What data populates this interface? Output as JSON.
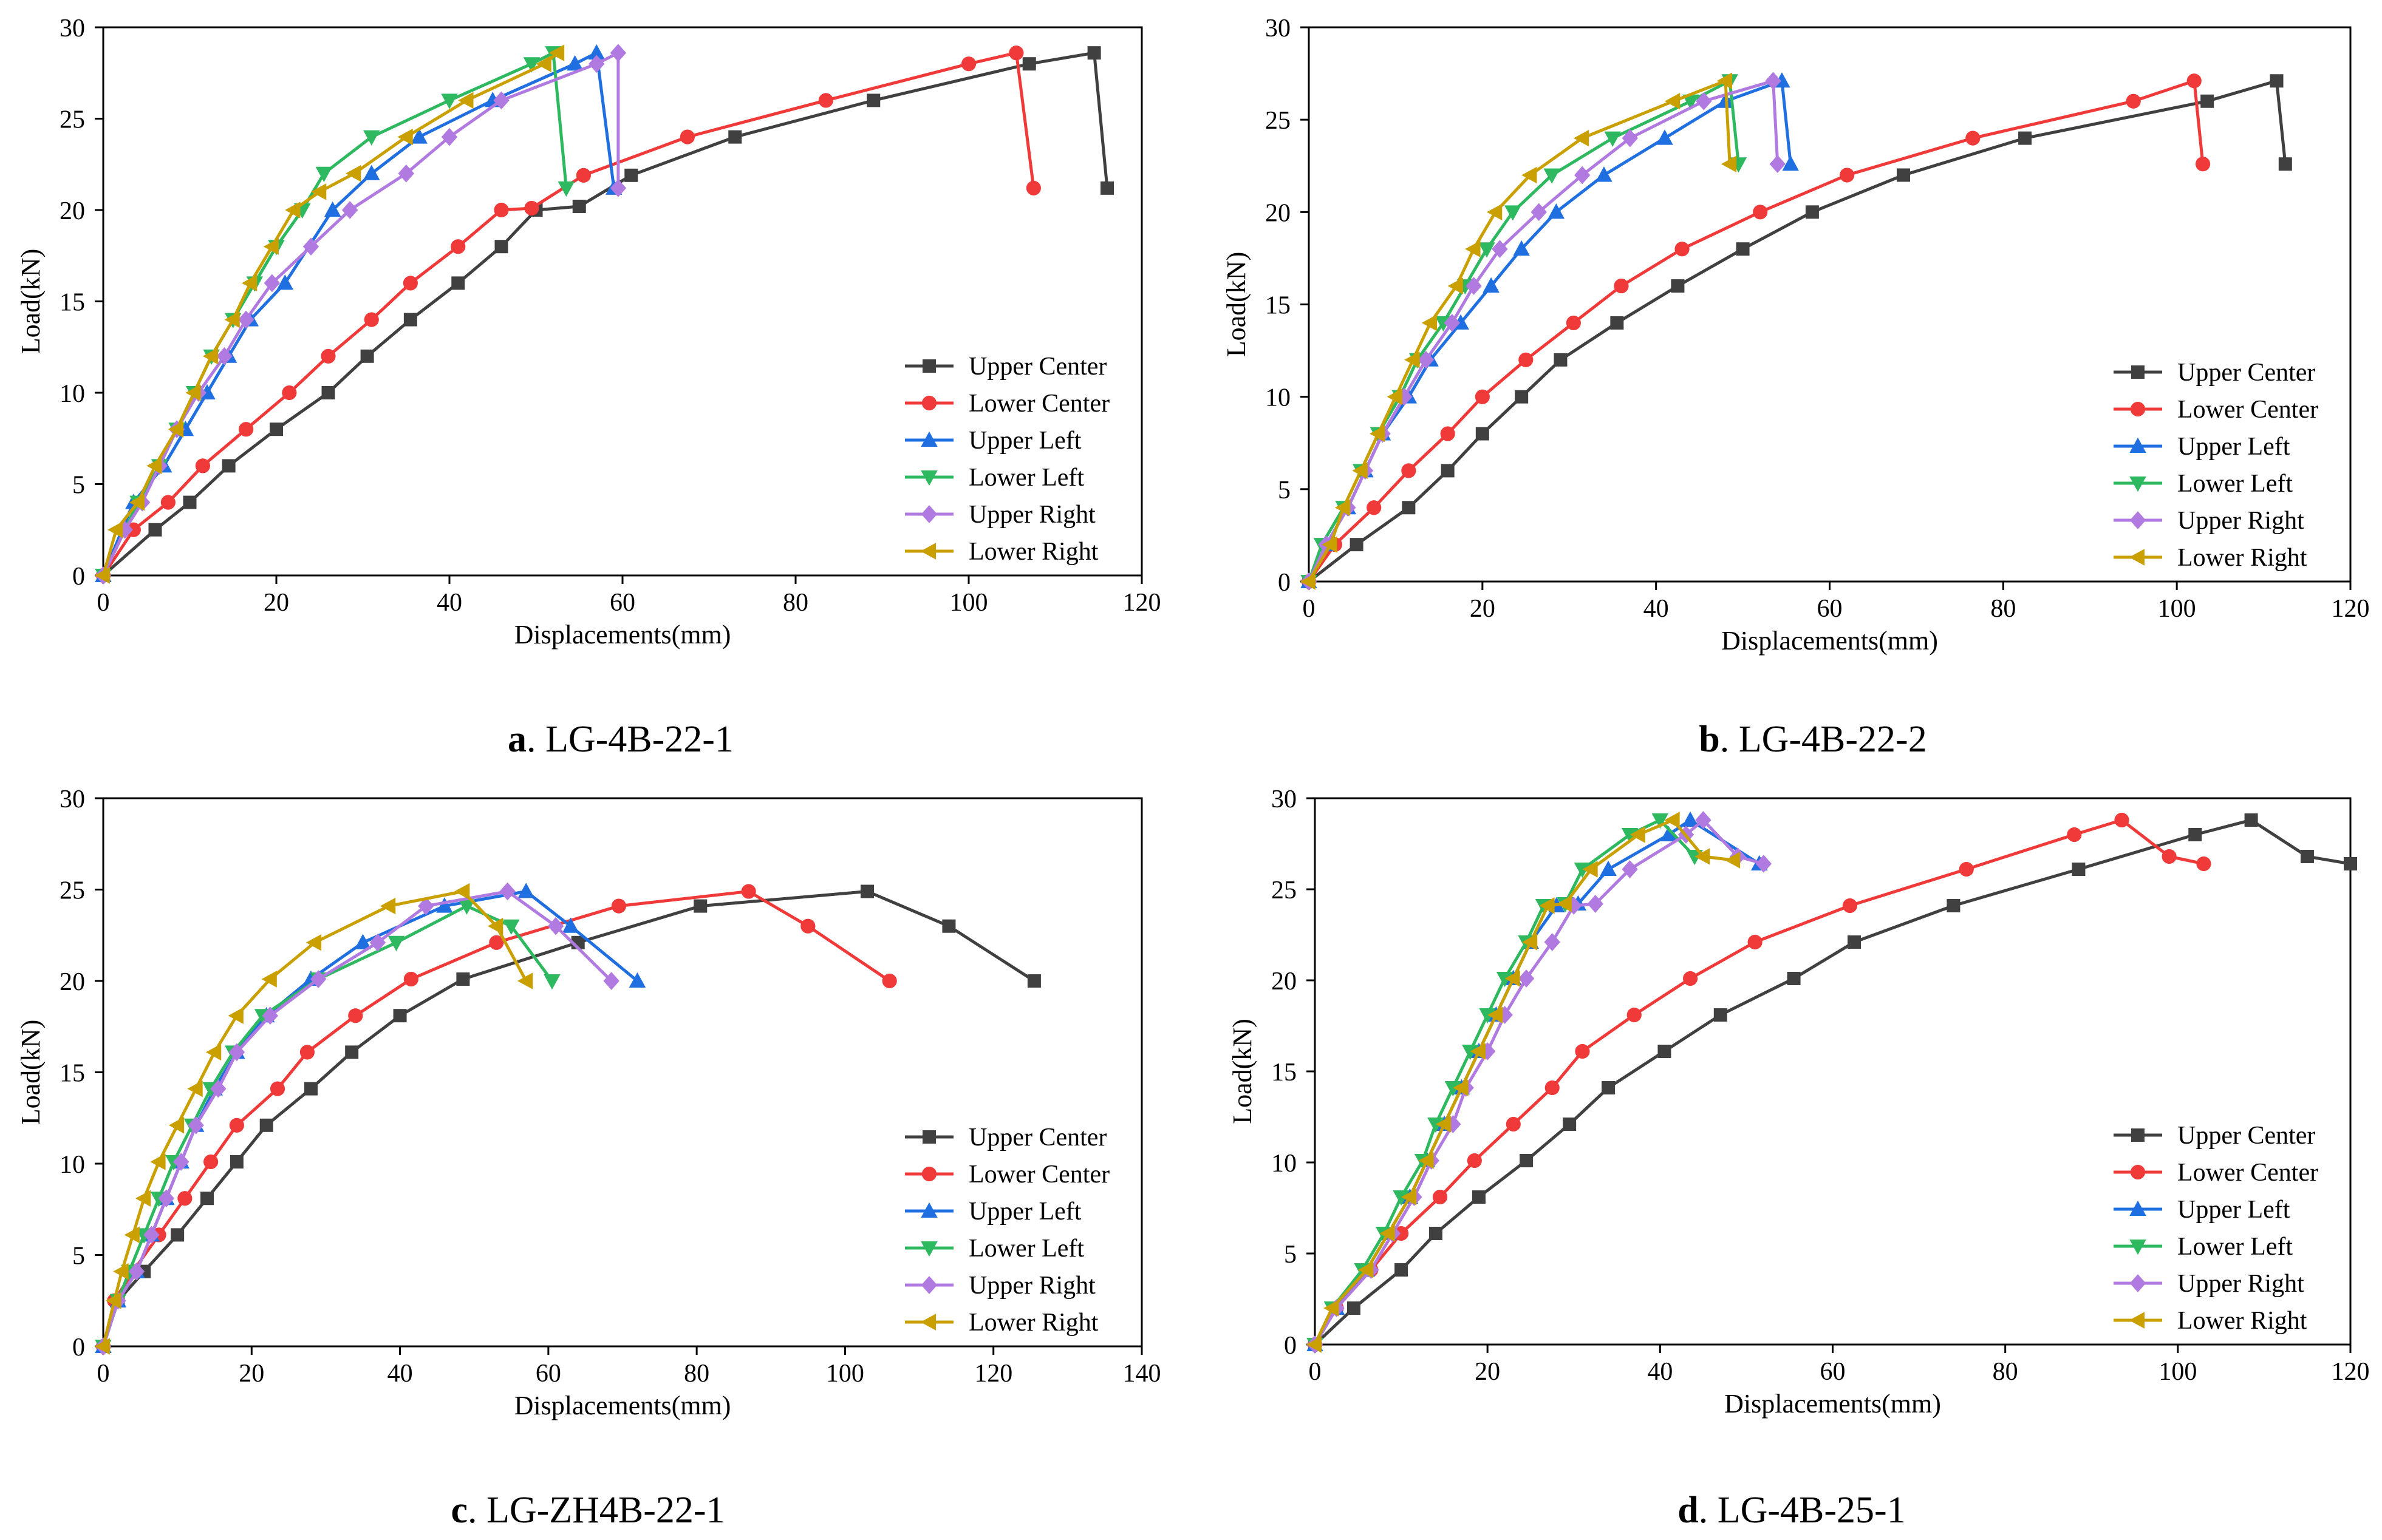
{
  "colors": {
    "Upper Center": "#404040",
    "Lower Center": "#f03a3a",
    "Upper Left": "#1f6fe0",
    "Lower Left": "#2eb860",
    "Upper Right": "#b07ae0",
    "Lower Right": "#c9a000"
  },
  "markers": {
    "Upper Center": "square",
    "Lower Center": "circle",
    "Upper Left": "triangle-up",
    "Lower Left": "triangle-down",
    "Upper Right": "diamond",
    "Lower Right": "triangle-left"
  },
  "chart_data": [
    {
      "type": "line",
      "panel": "a",
      "caption_letter": "a",
      "caption_text": ". LG-4B-22-1",
      "xlabel": "Displacements(mm)",
      "ylabel": "Load(kN)",
      "xlim": [
        0,
        120
      ],
      "ylim": [
        0,
        30
      ],
      "xticks": [
        0,
        20,
        40,
        60,
        80,
        100,
        120
      ],
      "yticks": [
        0,
        5,
        10,
        15,
        20,
        25,
        30
      ],
      "legend_position": "lower-right",
      "series": [
        {
          "name": "Upper Center",
          "x": [
            0,
            6,
            10,
            14.5,
            20,
            26,
            30.5,
            35.5,
            41,
            46,
            50,
            55,
            61,
            73,
            89,
            107,
            114.5,
            116
          ],
          "y": [
            0,
            2.5,
            4,
            6,
            8,
            10,
            12,
            14,
            16,
            18,
            20,
            20.2,
            21.9,
            24,
            26,
            28,
            28.6,
            21.2
          ]
        },
        {
          "name": "Lower Center",
          "x": [
            0,
            3.5,
            7.5,
            11.5,
            16.5,
            21.5,
            26,
            31,
            35.5,
            41,
            46,
            49.5,
            55.5,
            67.5,
            83.5,
            100,
            105.5,
            107.5
          ],
          "y": [
            0,
            2.5,
            4,
            6,
            8,
            10,
            12,
            14,
            16,
            18,
            20,
            20.1,
            21.9,
            24,
            26,
            28,
            28.6,
            21.2
          ]
        },
        {
          "name": "Upper Left",
          "x": [
            0,
            3.5,
            7,
            9.5,
            12,
            14.5,
            17,
            21,
            26.5,
            31,
            36.5,
            45,
            54.5,
            57,
            59
          ],
          "y": [
            0,
            4,
            6,
            8,
            10,
            12,
            14,
            16,
            20,
            22,
            24,
            26,
            28,
            28.6,
            21.2
          ]
        },
        {
          "name": "Lower Left",
          "x": [
            0,
            4,
            6.5,
            8.5,
            10.5,
            12.5,
            15,
            17.5,
            20,
            23,
            25.5,
            31,
            40,
            49.5,
            52,
            53.5
          ],
          "y": [
            0,
            4,
            6,
            8,
            10,
            12,
            14,
            16,
            18,
            20,
            22,
            24,
            26,
            28,
            28.6,
            21.2
          ]
        },
        {
          "name": "Upper Right",
          "x": [
            0,
            2.5,
            4.5,
            6.5,
            8.5,
            11,
            14,
            16.5,
            19.5,
            24,
            28.5,
            35,
            40,
            46,
            57,
            59.5,
            59.5
          ],
          "y": [
            0,
            2.5,
            4,
            6,
            8,
            10,
            12,
            14,
            16,
            18,
            20,
            22,
            24,
            26,
            28,
            28.6,
            21.2
          ]
        },
        {
          "name": "Lower Right",
          "x": [
            0,
            1.5,
            4,
            6,
            8.5,
            10.5,
            12.5,
            15,
            17,
            19.5,
            22,
            25,
            29,
            35,
            42,
            51,
            52.5
          ],
          "y": [
            0,
            2.5,
            4,
            6,
            8,
            10,
            12,
            14,
            16,
            18,
            20,
            21,
            22,
            24,
            26,
            28,
            28.6
          ]
        }
      ]
    },
    {
      "type": "line",
      "panel": "b",
      "caption_letter": "b",
      "caption_text": ". LG-4B-22-2",
      "xlabel": "Displacements(mm)",
      "ylabel": "Load(kN)",
      "xlim": [
        0,
        120
      ],
      "ylim": [
        0,
        30
      ],
      "xticks": [
        0,
        20,
        40,
        60,
        80,
        100,
        120
      ],
      "yticks": [
        0,
        5,
        10,
        15,
        20,
        25,
        30
      ],
      "legend_position": "lower-right",
      "series": [
        {
          "name": "Upper Center",
          "x": [
            0,
            5.5,
            11.5,
            16,
            20,
            24.5,
            29,
            35.5,
            42.5,
            50,
            58,
            68.5,
            82.5,
            103.5,
            111.5,
            112.5
          ],
          "y": [
            0,
            2,
            4,
            6,
            8,
            10,
            12,
            14,
            16,
            18,
            20,
            22,
            24,
            26,
            27.1,
            22.6
          ]
        },
        {
          "name": "Lower Center",
          "x": [
            0,
            3,
            7.5,
            11.5,
            16,
            20,
            25,
            30.5,
            36,
            43,
            52,
            62,
            76.5,
            95,
            102,
            103
          ],
          "y": [
            0,
            2,
            4,
            6,
            8,
            10,
            12,
            14,
            16,
            18,
            20,
            22,
            24,
            26,
            27.1,
            22.6
          ]
        },
        {
          "name": "Upper Left",
          "x": [
            0,
            2,
            4.5,
            6.5,
            8.5,
            11.5,
            14,
            17.5,
            21,
            24.5,
            28.5,
            34,
            41,
            48,
            54.5,
            55.5
          ],
          "y": [
            0,
            2,
            4,
            6,
            8,
            10,
            12,
            14,
            16,
            18,
            20,
            22,
            24,
            26,
            27.1,
            22.6
          ]
        },
        {
          "name": "Lower Left",
          "x": [
            0,
            1.5,
            4,
            6,
            8,
            10.5,
            12.5,
            15.5,
            18,
            20.5,
            23.5,
            28,
            35,
            44,
            48.5,
            49.5
          ],
          "y": [
            0,
            2,
            4,
            6,
            8,
            10,
            12,
            14,
            16,
            18,
            20,
            22,
            24,
            26,
            27.1,
            22.6
          ]
        },
        {
          "name": "Upper Right",
          "x": [
            0,
            2,
            4.5,
            6.5,
            8.5,
            11,
            13.5,
            16.5,
            19,
            22,
            26.5,
            31.5,
            37,
            45.5,
            53.5,
            54
          ],
          "y": [
            0,
            2,
            4,
            6,
            8,
            10,
            12,
            14,
            16,
            18,
            20,
            22,
            24,
            26,
            27.1,
            22.6
          ]
        },
        {
          "name": "Lower Right",
          "x": [
            0,
            2.5,
            4,
            6,
            8,
            10,
            12,
            14,
            17,
            19,
            21.5,
            25.5,
            31.5,
            42,
            48,
            48.5
          ],
          "y": [
            0,
            2,
            4,
            6,
            8,
            10,
            12,
            14,
            16,
            18,
            20,
            22,
            24,
            26,
            27.1,
            22.6
          ]
        }
      ]
    },
    {
      "type": "line",
      "panel": "c",
      "caption_letter": "c",
      "caption_text": ". LG-ZH4B-22-1",
      "xlabel": "Displacements(mm)",
      "ylabel": "Load(kN)",
      "xlim": [
        0,
        140
      ],
      "ylim": [
        0,
        30
      ],
      "xticks": [
        0,
        20,
        40,
        60,
        80,
        100,
        120,
        140
      ],
      "yticks": [
        0,
        5,
        10,
        15,
        20,
        25,
        30
      ],
      "legend_position": "lower-right",
      "series": [
        {
          "name": "Upper Center",
          "x": [
            0,
            2,
            5.5,
            10,
            14,
            18,
            22,
            28,
            33.5,
            40,
            48.5,
            64,
            80.5,
            103,
            114,
            125.5
          ],
          "y": [
            0,
            2.5,
            4.1,
            6.1,
            8.1,
            10.1,
            12.1,
            14.1,
            16.1,
            18.1,
            20.1,
            22.1,
            24.1,
            24.9,
            23,
            20
          ]
        },
        {
          "name": "Lower Center",
          "x": [
            0,
            1.5,
            4,
            7.5,
            11,
            14.5,
            18,
            23.5,
            27.5,
            34,
            41.5,
            53,
            69.5,
            87,
            95,
            106
          ],
          "y": [
            0,
            2.5,
            4.1,
            6.1,
            8.1,
            10.1,
            12.1,
            14.1,
            16.1,
            18.1,
            20.1,
            22.1,
            24.1,
            24.9,
            23,
            20
          ]
        },
        {
          "name": "Upper Left",
          "x": [
            0,
            2,
            4.5,
            6.5,
            8.5,
            10.5,
            12.5,
            15,
            18,
            22,
            28,
            35,
            46,
            57,
            63,
            72
          ],
          "y": [
            0,
            2.5,
            4.1,
            6.1,
            8.1,
            10.1,
            12.1,
            14.1,
            16.1,
            18.1,
            20.1,
            22.1,
            24.1,
            24.9,
            23,
            20
          ]
        },
        {
          "name": "Lower Left",
          "x": [
            0,
            2,
            3.5,
            5.5,
            7.5,
            9.5,
            12,
            14.5,
            17.5,
            21.5,
            29,
            39.5,
            49,
            55,
            60.5
          ],
          "y": [
            0,
            2.5,
            4.1,
            6.1,
            8.1,
            10.1,
            12.1,
            14.1,
            16.1,
            18.1,
            20.1,
            22.1,
            24.1,
            23,
            20
          ]
        },
        {
          "name": "Upper Right",
          "x": [
            0,
            2,
            4.5,
            6.5,
            8.5,
            10.5,
            12.5,
            15.5,
            18,
            22.5,
            29,
            37,
            43.5,
            54.5,
            61,
            68.5
          ],
          "y": [
            0,
            2.5,
            4.1,
            6.1,
            8.1,
            10.1,
            12.1,
            14.1,
            16.1,
            18.1,
            20.1,
            22.1,
            24.1,
            24.9,
            23,
            20
          ]
        },
        {
          "name": "Lower Right",
          "x": [
            0,
            1.5,
            2.5,
            4,
            5.5,
            7.5,
            10,
            12.5,
            15,
            18,
            22.5,
            28.5,
            38.5,
            48.5,
            53,
            57
          ],
          "y": [
            0,
            2.5,
            4.1,
            6.1,
            8.1,
            10.1,
            12.1,
            14.1,
            16.1,
            18.1,
            20.1,
            22.1,
            24.1,
            24.9,
            23,
            20
          ]
        }
      ]
    },
    {
      "type": "line",
      "panel": "d",
      "caption_letter": "d",
      "caption_text": ". LG-4B-25-1",
      "xlabel": "Displacements(mm)",
      "ylabel": "Load(kN)",
      "xlim": [
        0,
        120
      ],
      "ylim": [
        0,
        30
      ],
      "xticks": [
        0,
        20,
        40,
        60,
        80,
        100,
        120
      ],
      "yticks": [
        0,
        5,
        10,
        15,
        20,
        25,
        30
      ],
      "legend_position": "lower-right",
      "series": [
        {
          "name": "Upper Center",
          "x": [
            0,
            4.5,
            10,
            14,
            19,
            24.5,
            29.5,
            34,
            40.5,
            47,
            55.5,
            62.5,
            74,
            88.5,
            102,
            108.5,
            115,
            120
          ],
          "y": [
            0,
            2,
            4.1,
            6.1,
            8.1,
            10.1,
            12.1,
            14.1,
            16.1,
            18.1,
            20.1,
            22.1,
            24.1,
            26.1,
            28,
            28.8,
            26.8,
            26.4
          ]
        },
        {
          "name": "Lower Center",
          "x": [
            0,
            2.5,
            6.5,
            10,
            14.5,
            18.5,
            23,
            27.5,
            31,
            37,
            43.5,
            51,
            62,
            75.5,
            88,
            93.5,
            99,
            103
          ],
          "y": [
            0,
            2,
            4.1,
            6.1,
            8.1,
            10.1,
            12.1,
            14.1,
            16.1,
            18.1,
            20.1,
            22.1,
            24.1,
            26.1,
            28,
            28.8,
            26.8,
            26.4
          ]
        },
        {
          "name": "Upper Left",
          "x": [
            0,
            2.5,
            6,
            8.5,
            11,
            13,
            15,
            17,
            19,
            21,
            23,
            25,
            28,
            30.5,
            34,
            41,
            43.5,
            51.5
          ],
          "y": [
            0,
            2,
            4.1,
            6.1,
            8.1,
            10.1,
            12.1,
            14.1,
            16.1,
            18.1,
            20.1,
            22.1,
            24.1,
            24.2,
            26.1,
            28,
            28.8,
            26.4
          ]
        },
        {
          "name": "Lower Left",
          "x": [
            0,
            2,
            5.5,
            8,
            10,
            12.5,
            14,
            16,
            18,
            20,
            22,
            24.5,
            26.5,
            29,
            31,
            36.5,
            40,
            44
          ],
          "y": [
            0,
            2,
            4.1,
            6.1,
            8.1,
            10.1,
            12.1,
            14.1,
            16.1,
            18.1,
            20.1,
            22.1,
            24.1,
            24.2,
            26.1,
            28,
            28.8,
            26.8
          ]
        },
        {
          "name": "Upper Right",
          "x": [
            0,
            2.5,
            6.5,
            9,
            11.5,
            13.5,
            16,
            17.5,
            20,
            22,
            24.5,
            27.5,
            30,
            32.5,
            36.5,
            43,
            45,
            49,
            52
          ],
          "y": [
            0,
            2,
            4.1,
            6.1,
            8.1,
            10.1,
            12.1,
            14.1,
            16.1,
            18.1,
            20.1,
            22.1,
            24.1,
            24.2,
            26.1,
            28,
            28.8,
            26.8,
            26.4
          ]
        },
        {
          "name": "Lower Right",
          "x": [
            0,
            2,
            6,
            8.5,
            11,
            13,
            15,
            17,
            19,
            21,
            23,
            25,
            27,
            29,
            32,
            37.5,
            41.5,
            45,
            48.5
          ],
          "y": [
            0,
            2,
            4.1,
            6.1,
            8.1,
            10.1,
            12.1,
            14.1,
            16.1,
            18.1,
            20.1,
            22.1,
            24.1,
            24.2,
            26.1,
            28,
            28.8,
            26.8,
            26.6
          ]
        }
      ]
    }
  ]
}
